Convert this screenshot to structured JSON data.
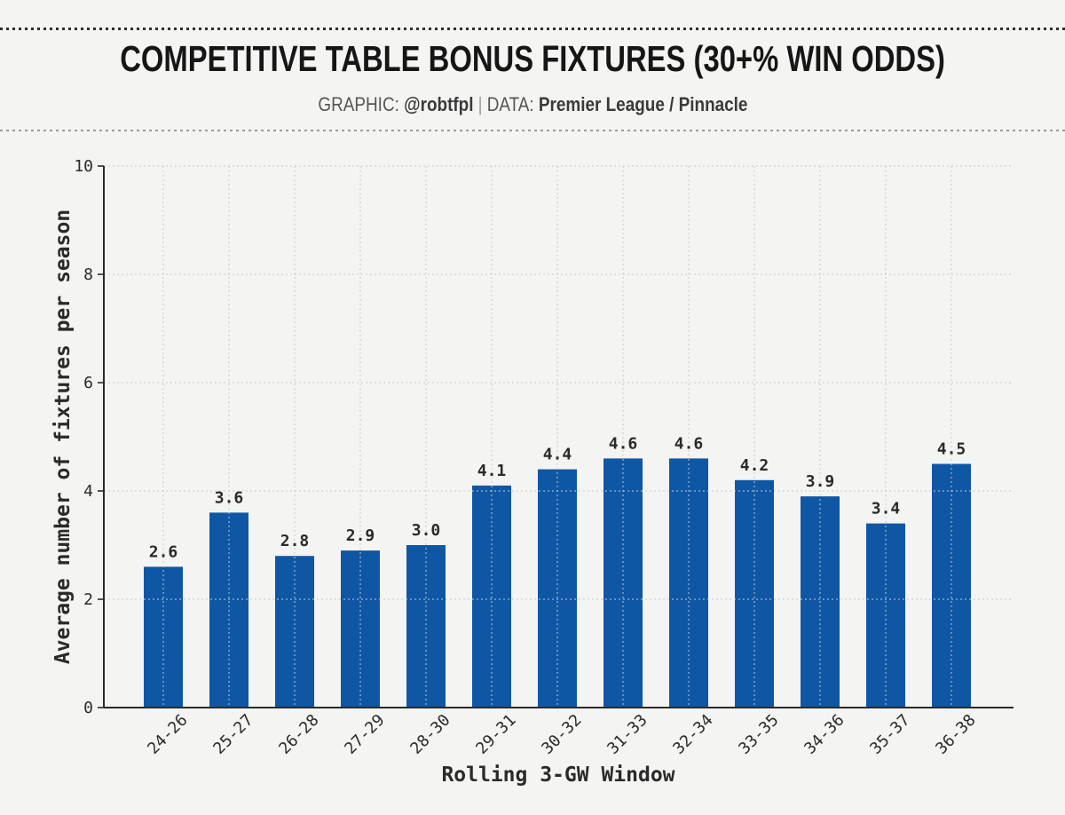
{
  "header": {
    "title": "COMPETITIVE TABLE BONUS FIXTURES (30+% WIN ODDS)",
    "graphic_label": "GRAPHIC:",
    "graphic_value": "@robtfpl",
    "separator": "|",
    "data_label": "DATA:",
    "data_value": "Premier League / Pinnacle"
  },
  "chart_data": {
    "type": "bar",
    "title": "COMPETITIVE TABLE BONUS FIXTURES (30+% WIN ODDS)",
    "categories": [
      "24-26",
      "25-27",
      "26-28",
      "27-29",
      "28-30",
      "29-31",
      "30-32",
      "31-33",
      "32-34",
      "33-35",
      "34-36",
      "35-37",
      "36-38"
    ],
    "values": [
      2.6,
      3.6,
      2.8,
      2.9,
      3.0,
      4.1,
      4.4,
      4.6,
      4.6,
      4.2,
      3.9,
      3.4,
      4.5
    ],
    "value_labels": [
      "2.6",
      "3.6",
      "2.8",
      "2.9",
      "3.0",
      "4.1",
      "4.4",
      "4.6",
      "4.6",
      "4.2",
      "3.9",
      "3.4",
      "4.5"
    ],
    "xlabel": "Rolling 3-GW Window",
    "ylabel": "Average number of fixtures per season",
    "ylim": [
      0,
      10
    ],
    "yticks": [
      0,
      2,
      4,
      6,
      8,
      10
    ],
    "grid": true,
    "legend": "none",
    "colors": {
      "bar": "#0f57a5",
      "background": "#f4f4f2",
      "grid": "#c9c9c9",
      "axis": "#2a2a2a"
    }
  }
}
